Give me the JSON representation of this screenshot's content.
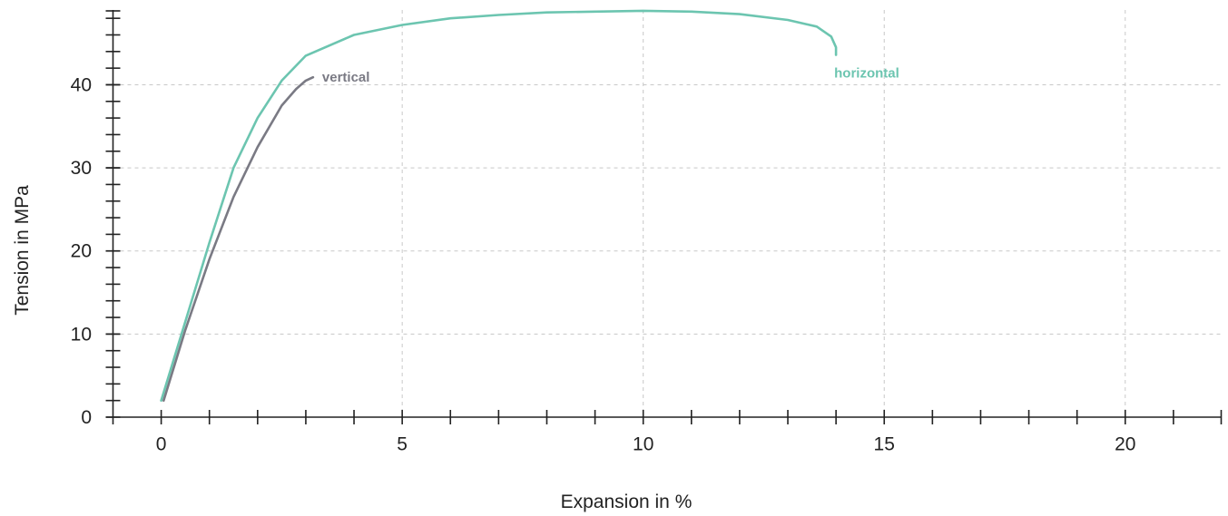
{
  "chart_data": {
    "type": "line",
    "title": "",
    "xlabel": "Expansion in %",
    "ylabel": "Tension in MPa",
    "xlim": [
      -1,
      22
    ],
    "ylim": [
      0,
      49
    ],
    "x_ticks": [
      0,
      5,
      10,
      15,
      20
    ],
    "y_ticks": [
      0,
      10,
      20,
      30,
      40
    ],
    "x_minor_step": 1,
    "y_minor_step": 2,
    "grid": true,
    "series": [
      {
        "name": "horizontal",
        "color": "#6cc5b0",
        "points": [
          [
            0.0,
            2.0
          ],
          [
            0.5,
            11.5
          ],
          [
            1.0,
            21.0
          ],
          [
            1.5,
            30.0
          ],
          [
            2.0,
            36.0
          ],
          [
            2.5,
            40.5
          ],
          [
            3.0,
            43.5
          ],
          [
            4.0,
            46.0
          ],
          [
            5.0,
            47.2
          ],
          [
            6.0,
            48.0
          ],
          [
            7.0,
            48.4
          ],
          [
            8.0,
            48.7
          ],
          [
            9.0,
            48.8
          ],
          [
            10.0,
            48.9
          ],
          [
            11.0,
            48.8
          ],
          [
            12.0,
            48.5
          ],
          [
            13.0,
            47.8
          ],
          [
            13.6,
            47.0
          ],
          [
            13.9,
            45.8
          ],
          [
            14.0,
            44.5
          ],
          [
            14.0,
            43.6
          ]
        ]
      },
      {
        "name": "vertical",
        "color": "#7a7a84",
        "points": [
          [
            0.05,
            2.0
          ],
          [
            0.5,
            10.5
          ],
          [
            1.0,
            19.0
          ],
          [
            1.5,
            26.5
          ],
          [
            2.0,
            32.5
          ],
          [
            2.5,
            37.5
          ],
          [
            2.8,
            39.5
          ],
          [
            3.0,
            40.5
          ],
          [
            3.15,
            40.9
          ]
        ]
      }
    ]
  }
}
